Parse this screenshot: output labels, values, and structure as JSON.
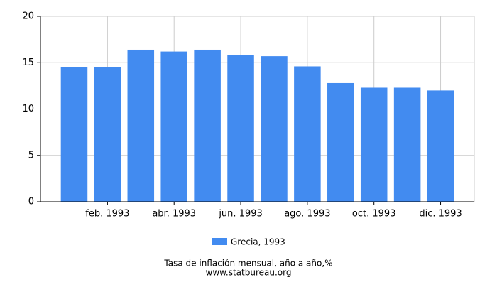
{
  "chart_data": {
    "type": "bar",
    "title": "Tasa de inflación mensual, año a año,%",
    "source": "www.statbureau.org",
    "categories": [
      null,
      "feb. 1993",
      null,
      "abr. 1993",
      null,
      "jun. 1993",
      null,
      "ago. 1993",
      null,
      "oct. 1993",
      null,
      "dic. 1993"
    ],
    "series": [
      {
        "name": "Grecia, 1993",
        "color": "#428bf0",
        "values": [
          14.5,
          14.5,
          16.4,
          16.2,
          16.4,
          15.8,
          15.7,
          14.6,
          12.8,
          12.3,
          12.3,
          12.0
        ]
      }
    ],
    "ylim": [
      0,
      20
    ],
    "yticks": [
      0,
      5,
      10,
      15,
      20
    ],
    "grid": true
  }
}
